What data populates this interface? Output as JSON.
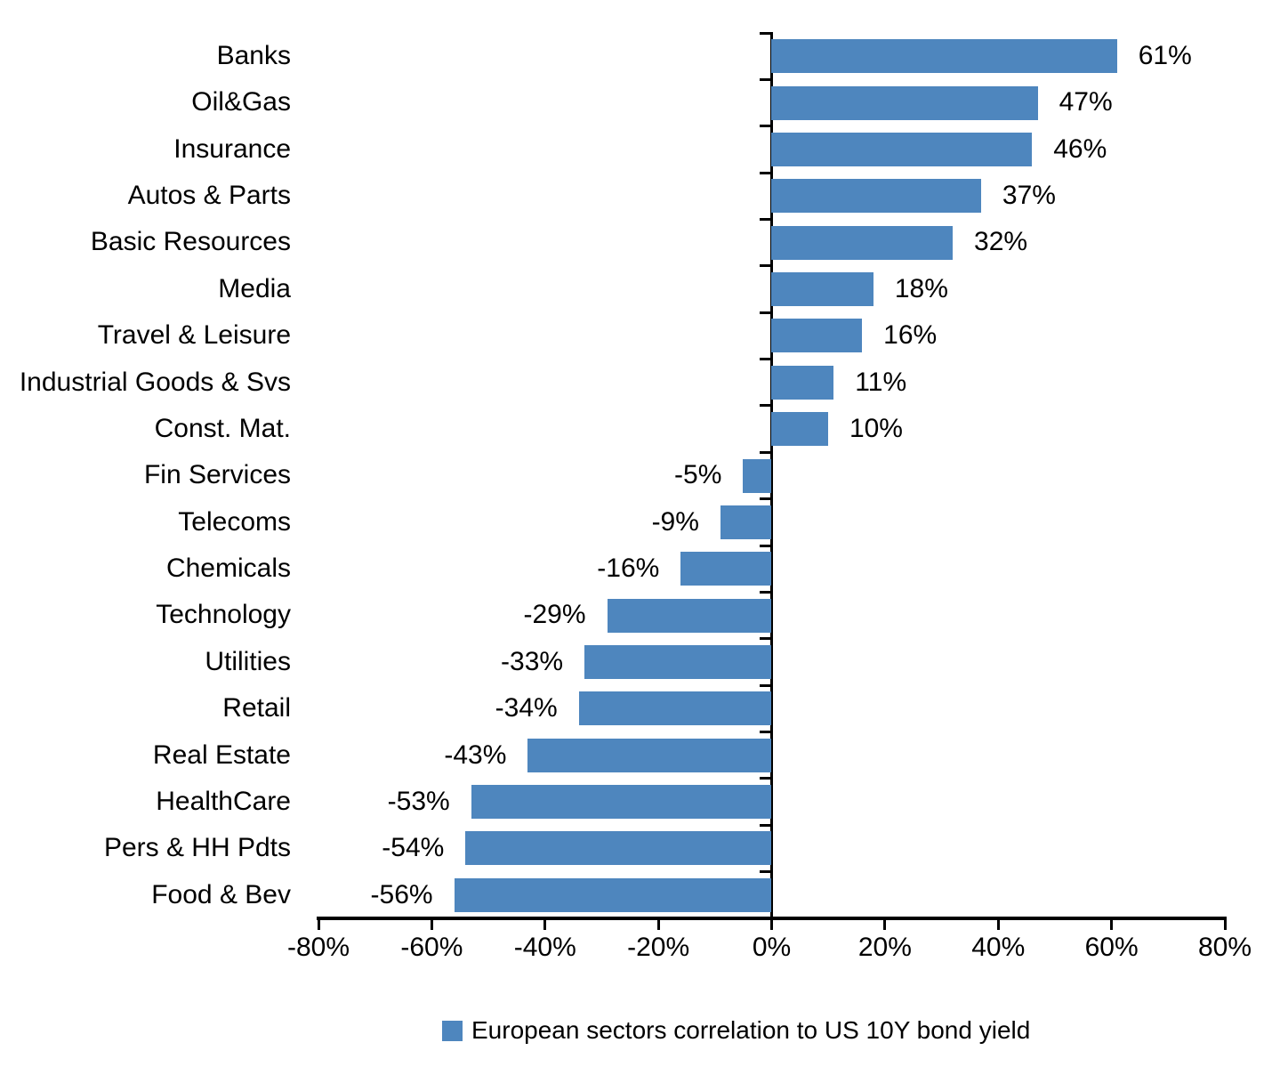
{
  "chart_data": {
    "type": "bar",
    "orientation": "horizontal",
    "categories": [
      "Banks",
      "Oil&Gas",
      "Insurance",
      "Autos & Parts",
      "Basic Resources",
      "Media",
      "Travel & Leisure",
      "Industrial Goods & Svs",
      "Const. Mat.",
      "Fin Services",
      "Telecoms",
      "Chemicals",
      "Technology",
      "Utilities",
      "Retail",
      "Real Estate",
      "HealthCare",
      "Pers & HH Pdts",
      "Food & Bev"
    ],
    "values": [
      61,
      47,
      46,
      37,
      32,
      18,
      16,
      11,
      10,
      -5,
      -9,
      -16,
      -29,
      -33,
      -34,
      -43,
      -53,
      -54,
      -56
    ],
    "value_labels": [
      "61%",
      "47%",
      "46%",
      "37%",
      "32%",
      "18%",
      "16%",
      "11%",
      "10%",
      "-5%",
      "-9%",
      "-16%",
      "-29%",
      "-33%",
      "-34%",
      "-43%",
      "-53%",
      "-54%",
      "-56%"
    ],
    "x_axis": {
      "min": -80,
      "max": 80,
      "ticks": [
        "-80%",
        "-60%",
        "-40%",
        "-20%",
        "0%",
        "20%",
        "40%",
        "60%",
        "80%"
      ]
    },
    "legend": {
      "label": "European sectors correlation to US 10Y bond yield",
      "position": "bottom"
    },
    "bar_color": "#4e86be",
    "axis_color": "#000000",
    "text_color": "#000000",
    "grid": false
  }
}
